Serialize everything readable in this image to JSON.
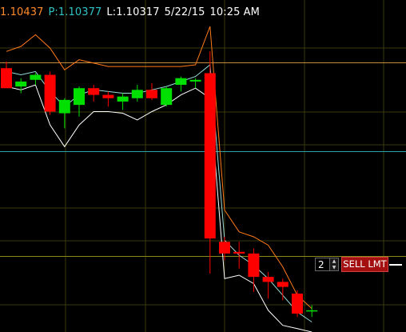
{
  "info": {
    "close": "1.10437",
    "pivot_prefix": "P:",
    "pivot": "1.10377",
    "low_prefix": "L:",
    "low": "1.10317",
    "date": "5/22/15",
    "time": "10:25 AM"
  },
  "order": {
    "quantity": "2",
    "button_label": "SELL LMT"
  },
  "colors": {
    "bullish": "#00e000",
    "bearish": "#ff0000",
    "upper_band": "#ff7a1a",
    "lower_band": "#ffffff",
    "midline": "#9adada",
    "grid": "#3a3a0e",
    "level_orange": "#c98a3a",
    "level_cyan": "#2aa0a0",
    "level_yellow": "#8a8a1a",
    "close_text": "#ff8a2a",
    "pivot_text": "#2ec4c4",
    "info_text": "#ffffff"
  },
  "chart_data": {
    "type": "candlestick",
    "candles": [
      {
        "open": 1.1188,
        "high": 1.1192,
        "low": 1.1176,
        "close": 1.1176
      },
      {
        "open": 1.1177,
        "high": 1.1182,
        "low": 1.1173,
        "close": 1.118
      },
      {
        "open": 1.1181,
        "high": 1.1185,
        "low": 1.1178,
        "close": 1.1184
      },
      {
        "open": 1.1184,
        "high": 1.1186,
        "low": 1.116,
        "close": 1.1162
      },
      {
        "open": 1.1161,
        "high": 1.117,
        "low": 1.1152,
        "close": 1.1169
      },
      {
        "open": 1.1166,
        "high": 1.1177,
        "low": 1.1159,
        "close": 1.1176
      },
      {
        "open": 1.1176,
        "high": 1.1178,
        "low": 1.1168,
        "close": 1.1172
      },
      {
        "open": 1.1172,
        "high": 1.1174,
        "low": 1.1165,
        "close": 1.117
      },
      {
        "open": 1.1168,
        "high": 1.1173,
        "low": 1.1163,
        "close": 1.1171
      },
      {
        "open": 1.117,
        "high": 1.1178,
        "low": 1.1168,
        "close": 1.1175
      },
      {
        "open": 1.1175,
        "high": 1.1179,
        "low": 1.1169,
        "close": 1.117
      },
      {
        "open": 1.1166,
        "high": 1.1177,
        "low": 1.1165,
        "close": 1.1176
      },
      {
        "open": 1.1178,
        "high": 1.1183,
        "low": 1.1174,
        "close": 1.1182
      },
      {
        "open": 1.118,
        "high": 1.1182,
        "low": 1.1176,
        "close": 1.1181
      },
      {
        "open": 1.1185,
        "high": 1.1198,
        "low": 1.1065,
        "close": 1.1086
      },
      {
        "open": 1.1084,
        "high": 1.1087,
        "low": 1.1073,
        "close": 1.1077
      },
      {
        "open": 1.1078,
        "high": 1.1084,
        "low": 1.1068,
        "close": 1.1077
      },
      {
        "open": 1.1077,
        "high": 1.108,
        "low": 1.1054,
        "close": 1.1063
      },
      {
        "open": 1.1063,
        "high": 1.1066,
        "low": 1.105,
        "close": 1.106
      },
      {
        "open": 1.106,
        "high": 1.1062,
        "low": 1.1049,
        "close": 1.1057
      },
      {
        "open": 1.1053,
        "high": 1.1055,
        "low": 1.1039,
        "close": 1.1041
      },
      {
        "open": 1.1043,
        "high": 1.1046,
        "low": 1.1039,
        "close": 1.1043
      }
    ],
    "upper_band": [
      1.1198,
      1.1201,
      1.1208,
      1.12,
      1.1187,
      1.1193,
      1.1191,
      1.1189,
      1.1189,
      1.1189,
      1.1189,
      1.1189,
      1.1189,
      1.119,
      1.1213,
      1.1103,
      1.109,
      1.1087,
      1.1082,
      1.1069,
      1.1052,
      1.1044
    ],
    "lower_band": [
      1.1177,
      1.1175,
      1.1178,
      1.1154,
      1.1141,
      1.1154,
      1.1162,
      1.1162,
      1.1161,
      1.1157,
      1.1162,
      1.1166,
      1.1172,
      1.1176,
      1.117,
      1.1062,
      1.1064,
      1.1059,
      1.1043,
      1.1034,
      1.1032,
      1.103
    ],
    "midline": [
      1.1186,
      1.1184,
      1.1186,
      1.1174,
      1.1165,
      1.1172,
      1.1175,
      1.1174,
      1.1173,
      1.1173,
      1.1175,
      1.1177,
      1.118,
      1.1183,
      1.119,
      1.1085,
      1.1076,
      1.107,
      1.1062,
      1.1052,
      1.1042,
      1.1036
    ],
    "levels": [
      {
        "name": "level-orange",
        "value": 1.11915
      },
      {
        "name": "level-cyan",
        "value": 1.11385
      },
      {
        "name": "level-yellow",
        "value": 1.10755
      }
    ],
    "ylim": [
      1.103,
      1.1213
    ],
    "order_level": 1.1079,
    "grid": true
  }
}
